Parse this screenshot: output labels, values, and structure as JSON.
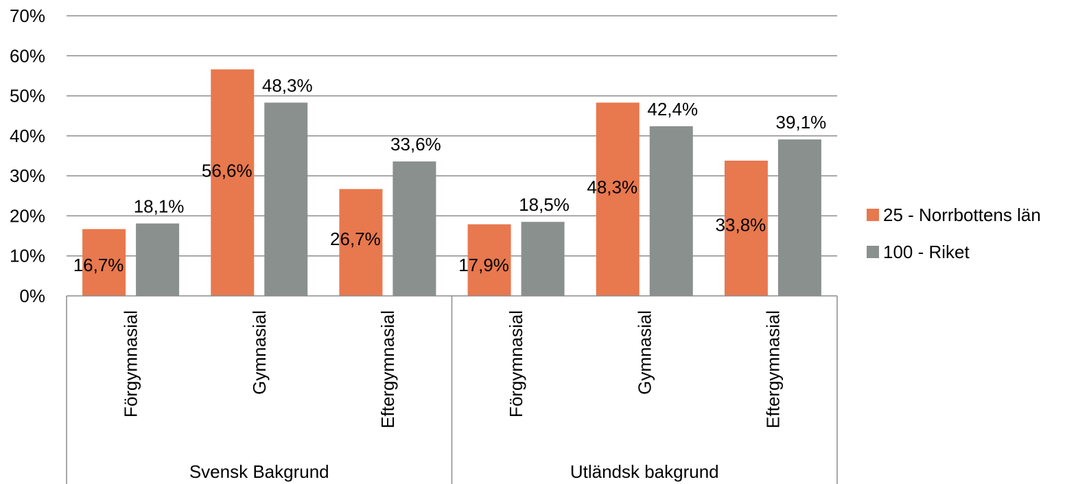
{
  "chart_data": {
    "type": "bar",
    "title": "",
    "xlabel": "",
    "ylabel": "",
    "ylim": [
      0,
      70
    ],
    "yticks": [
      0,
      10,
      20,
      30,
      40,
      50,
      60,
      70
    ],
    "ytick_labels": [
      "0%",
      "10%",
      "20%",
      "30%",
      "40%",
      "50%",
      "60%",
      "70%"
    ],
    "grid": true,
    "legend_position": "right",
    "groups": [
      {
        "label": "Svensk Bakgrund",
        "categories": [
          "Förgymnasial",
          "Gymnasial",
          "Eftergymnasial"
        ]
      },
      {
        "label": "Utländsk bakgrund",
        "categories": [
          "Förgymnasial",
          "Gymnasial",
          "Eftergymnasial"
        ]
      }
    ],
    "series": [
      {
        "name": "25 - Norrbottens län",
        "color": "#E8784E",
        "values": [
          16.7,
          56.6,
          26.7,
          17.9,
          48.3,
          33.8
        ],
        "labels": [
          "16,7%",
          "56,6%",
          "26,7%",
          "17,9%",
          "48,3%",
          "33,8%"
        ]
      },
      {
        "name": "100 - Riket",
        "color": "#8A908E",
        "values": [
          18.1,
          48.3,
          33.6,
          18.5,
          42.4,
          39.1
        ],
        "labels": [
          "18,1%",
          "48,3%",
          "33,6%",
          "18,5%",
          "42,4%",
          "39,1%"
        ]
      }
    ]
  }
}
